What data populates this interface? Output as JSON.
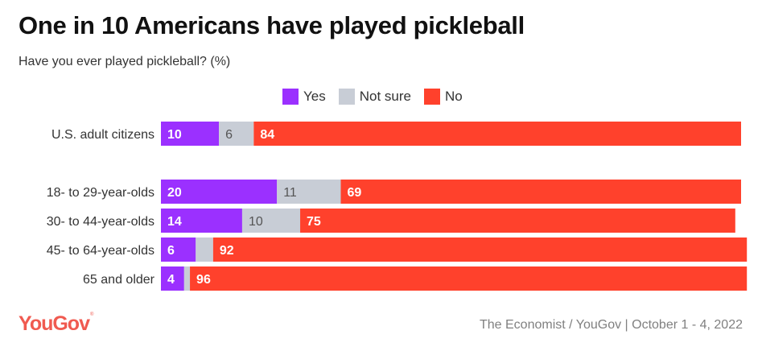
{
  "chart_data": {
    "type": "bar",
    "orientation": "horizontal",
    "stacked": true,
    "title": "One in 10 Americans have played pickleball",
    "subtitle": "Have you ever played pickleball? (%)",
    "xlabel": "",
    "ylabel": "",
    "xlim": [
      0,
      100
    ],
    "grid": false,
    "legend_position": "top-center",
    "categories": [
      "U.S. adult citizens",
      "18- to 29-year-olds",
      "30- to 44-year-olds",
      "45- to 64-year-olds",
      "65 and older"
    ],
    "group_gap_after": [
      0
    ],
    "series": [
      {
        "name": "Yes",
        "color": "#9b30ff",
        "label_color": "#ffffff",
        "values": [
          10,
          20,
          14,
          6,
          4
        ],
        "labels": [
          "10",
          "20",
          "14",
          "6",
          "4"
        ]
      },
      {
        "name": "Not sure",
        "color": "#c8cdd6",
        "label_color": "#555555",
        "values": [
          6,
          11,
          10,
          3,
          1
        ],
        "labels": [
          "6",
          "11",
          "10",
          "",
          ""
        ]
      },
      {
        "name": "No",
        "color": "#ff412c",
        "label_color": "#ffffff",
        "values": [
          84,
          69,
          75,
          92,
          96
        ],
        "labels": [
          "84",
          "69",
          "75",
          "92",
          "96"
        ]
      }
    ]
  },
  "header": {
    "title": "One in 10 Americans have played pickleball",
    "subtitle": "Have you ever played pickleball? (%)"
  },
  "legend": [
    {
      "label": "Yes",
      "color": "#9b30ff"
    },
    {
      "label": "Not sure",
      "color": "#c8cdd6"
    },
    {
      "label": "No",
      "color": "#ff412c"
    }
  ],
  "footer": {
    "logo": "YouGov",
    "source": "The Economist / YouGov | October 1 - 4, 2022"
  }
}
